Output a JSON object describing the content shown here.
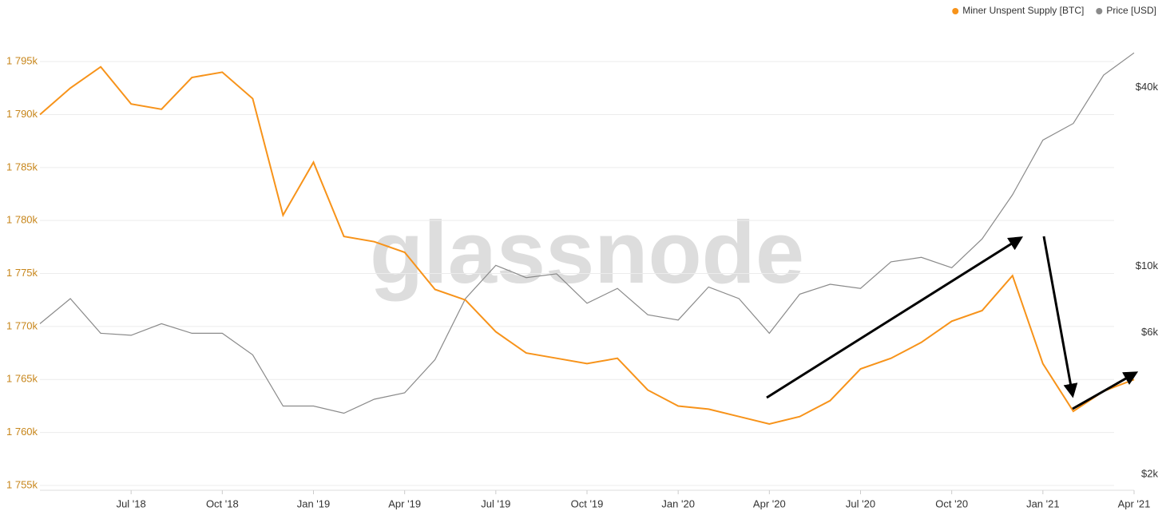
{
  "chart_data": {
    "type": "line",
    "watermark": "glassnode",
    "x": [
      "2018-04",
      "2018-05",
      "2018-06",
      "2018-07",
      "2018-08",
      "2018-09",
      "2018-10",
      "2018-11",
      "2018-12",
      "2019-01",
      "2019-02",
      "2019-03",
      "2019-04",
      "2019-05",
      "2019-06",
      "2019-07",
      "2019-08",
      "2019-09",
      "2019-10",
      "2019-11",
      "2019-12",
      "2020-01",
      "2020-02",
      "2020-03",
      "2020-04",
      "2020-05",
      "2020-06",
      "2020-07",
      "2020-08",
      "2020-09",
      "2020-10",
      "2020-11",
      "2020-12",
      "2021-01",
      "2021-02",
      "2021-03",
      "2021-04"
    ],
    "series": [
      {
        "name": "Miner Unspent Supply [BTC]",
        "color": "#f7931a",
        "axis": "y",
        "values": [
          1790000,
          1792500,
          1794500,
          1791000,
          1790500,
          1793500,
          1794000,
          1791500,
          1780500,
          1785500,
          1778500,
          1778000,
          1777000,
          1773500,
          1772500,
          1769500,
          1767500,
          1767000,
          1766500,
          1767000,
          1764000,
          1762500,
          1762200,
          1761500,
          1760800,
          1761500,
          1763000,
          1766000,
          1767000,
          1768500,
          1770500,
          1771500,
          1774800,
          1766500,
          1762000,
          1763900,
          1765000
        ]
      },
      {
        "name": "Price [USD]",
        "color": "#8a8a8a",
        "axis": "y2",
        "values": [
          7000,
          8500,
          6500,
          6400,
          7000,
          6500,
          6500,
          5500,
          3700,
          3700,
          3500,
          3900,
          4100,
          5300,
          8500,
          11000,
          10000,
          10300,
          8200,
          9200,
          7500,
          7200,
          9300,
          8500,
          6500,
          8800,
          9500,
          9200,
          11300,
          11700,
          10800,
          13500,
          19000,
          29000,
          33000,
          48000,
          57000
        ]
      }
    ],
    "xticks": [
      {
        "value": "2018-07",
        "label": "Jul '18"
      },
      {
        "value": "2018-10",
        "label": "Oct '18"
      },
      {
        "value": "2019-01",
        "label": "Jan '19"
      },
      {
        "value": "2019-04",
        "label": "Apr '19"
      },
      {
        "value": "2019-07",
        "label": "Jul '19"
      },
      {
        "value": "2019-10",
        "label": "Oct '19"
      },
      {
        "value": "2020-01",
        "label": "Jan '20"
      },
      {
        "value": "2020-04",
        "label": "Apr '20"
      },
      {
        "value": "2020-07",
        "label": "Jul '20"
      },
      {
        "value": "2020-10",
        "label": "Oct '20"
      },
      {
        "value": "2021-01",
        "label": "Jan '21"
      },
      {
        "value": "2021-04",
        "label": "Apr '21"
      }
    ],
    "ylim": [
      1755000,
      1799000
    ],
    "yticks": [
      {
        "value": 1755000,
        "label": "1 755k"
      },
      {
        "value": 1760000,
        "label": "1 760k"
      },
      {
        "value": 1765000,
        "label": "1 765k"
      },
      {
        "value": 1770000,
        "label": "1 770k"
      },
      {
        "value": 1775000,
        "label": "1 775k"
      },
      {
        "value": 1780000,
        "label": "1 780k"
      },
      {
        "value": 1785000,
        "label": "1 785k"
      },
      {
        "value": 1790000,
        "label": "1 790k"
      },
      {
        "value": 1795000,
        "label": "1 795k"
      }
    ],
    "y2lim": [
      2000,
      74000
    ],
    "y2log": true,
    "y2ticks": [
      {
        "value": 2000,
        "label": "$2k"
      },
      {
        "value": 6000,
        "label": "$6k"
      },
      {
        "value": 10000,
        "label": "$10k"
      },
      {
        "value": 40000,
        "label": "$40k"
      }
    ],
    "grid": true,
    "legend": "top-right"
  }
}
